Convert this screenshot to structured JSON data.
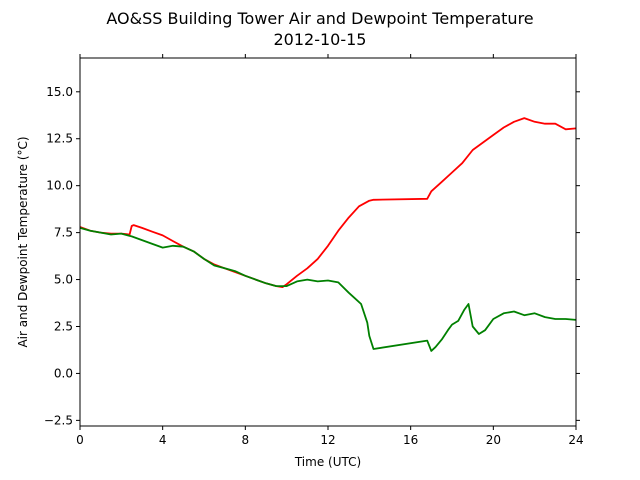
{
  "chart_data": {
    "type": "line",
    "title": "AO&SS Building Tower Air and Dewpoint Temperature",
    "subtitle": "2012-10-15",
    "xlabel": "Time (UTC)",
    "ylabel": "Air and Dewpoint Temperature (°C)",
    "xlim": [
      0,
      24
    ],
    "ylim": [
      -2.8,
      16.8
    ],
    "xticks": [
      0,
      4,
      8,
      12,
      16,
      20,
      24
    ],
    "xtick_labels": [
      "0",
      "4",
      "8",
      "12",
      "16",
      "20",
      "24"
    ],
    "yticks": [
      -2.5,
      0.0,
      2.5,
      5.0,
      7.5,
      10.0,
      12.5,
      15.0
    ],
    "ytick_labels": [
      "−2.5",
      "0.0",
      "2.5",
      "5.0",
      "7.5",
      "10.0",
      "12.5",
      "15.0"
    ],
    "grid": false,
    "series": [
      {
        "color": "#ff0000",
        "x": [
          0,
          0.5,
          1.0,
          1.5,
          2.0,
          2.4,
          2.5,
          2.6,
          3.0,
          3.5,
          4.0,
          4.5,
          5.0,
          5.5,
          6.0,
          6.5,
          7.0,
          7.5,
          8.0,
          8.5,
          9.0,
          9.5,
          9.8,
          10.0,
          10.5,
          11.0,
          11.5,
          12.0,
          12.5,
          13.0,
          13.5,
          14.0,
          14.2,
          16.8,
          17.0,
          17.5,
          18.0,
          18.5,
          19.0,
          19.5,
          20.0,
          20.5,
          21.0,
          21.5,
          22.0,
          22.5,
          23.0,
          23.5,
          24.0
        ],
        "values": [
          7.8,
          7.6,
          7.5,
          7.45,
          7.45,
          7.4,
          7.85,
          7.9,
          7.75,
          7.55,
          7.35,
          7.05,
          6.75,
          6.5,
          6.1,
          5.8,
          5.6,
          5.4,
          5.2,
          5.0,
          4.8,
          4.65,
          4.6,
          4.75,
          5.2,
          5.6,
          6.1,
          6.8,
          7.6,
          8.3,
          8.9,
          9.2,
          9.25,
          9.3,
          9.7,
          10.2,
          10.7,
          11.2,
          11.9,
          12.3,
          12.7,
          13.1,
          13.4,
          13.6,
          13.4,
          13.3,
          13.3,
          13.0,
          13.05
        ]
      },
      {
        "color": "#008000",
        "x": [
          0,
          0.5,
          1.0,
          1.5,
          2.0,
          2.5,
          3.0,
          3.5,
          4.0,
          4.5,
          5.0,
          5.5,
          6.0,
          6.5,
          7.0,
          7.5,
          8.0,
          8.5,
          9.0,
          9.5,
          10.0,
          10.5,
          11.0,
          11.5,
          12.0,
          12.5,
          13.0,
          13.3,
          13.6,
          13.9,
          14.0,
          14.2,
          16.8,
          17.0,
          17.2,
          17.5,
          17.8,
          18.0,
          18.3,
          18.6,
          18.8,
          19.0,
          19.3,
          19.6,
          20.0,
          20.5,
          21.0,
          21.5,
          22.0,
          22.5,
          23.0,
          23.5,
          24.0
        ],
        "values": [
          7.75,
          7.6,
          7.5,
          7.4,
          7.45,
          7.3,
          7.1,
          6.9,
          6.7,
          6.8,
          6.75,
          6.5,
          6.1,
          5.75,
          5.6,
          5.45,
          5.2,
          5.0,
          4.8,
          4.65,
          4.65,
          4.9,
          5.0,
          4.9,
          4.95,
          4.85,
          4.3,
          4.0,
          3.7,
          2.7,
          2.0,
          1.3,
          1.75,
          1.2,
          1.4,
          1.8,
          2.3,
          2.6,
          2.8,
          3.4,
          3.7,
          2.5,
          2.1,
          2.3,
          2.9,
          3.2,
          3.3,
          3.1,
          3.2,
          3.0,
          2.9,
          2.9,
          2.85
        ]
      }
    ]
  }
}
